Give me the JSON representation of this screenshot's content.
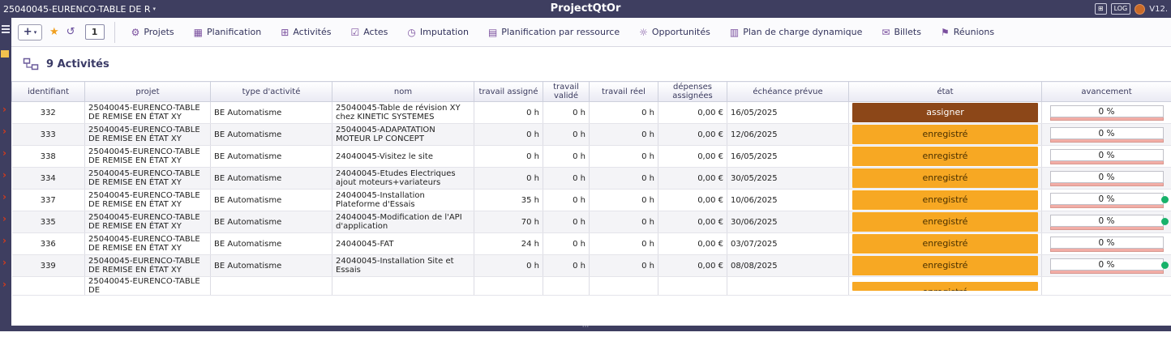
{
  "topbar": {
    "project_selector": "25040045-EURENCO-TABLE DE R",
    "caret": "▾",
    "title": "ProjectQtOr",
    "apps_glyph": "⊞",
    "log_badge": "LOG",
    "version": "V12."
  },
  "toolbar": {
    "new_label": "+",
    "new_caret": "▾",
    "favorite_glyph": "★",
    "history_glyph": "↺",
    "counter": "1",
    "menu": [
      {
        "label": "Projets",
        "icon": "gear-icon",
        "glyph": "⚙"
      },
      {
        "label": "Planification",
        "icon": "calendar-icon",
        "glyph": "▦"
      },
      {
        "label": "Activités",
        "icon": "activities-icon",
        "glyph": "⊞"
      },
      {
        "label": "Actes",
        "icon": "checklist-icon",
        "glyph": "☑"
      },
      {
        "label": "Imputation",
        "icon": "clock-icon",
        "glyph": "◷"
      },
      {
        "label": "Planification par ressource",
        "icon": "resource-plan-icon",
        "glyph": "▤"
      },
      {
        "label": "Opportunités",
        "icon": "opportunity-icon",
        "glyph": "☼"
      },
      {
        "label": "Plan de charge dynamique",
        "icon": "workload-icon",
        "glyph": "▥"
      },
      {
        "label": "Billets",
        "icon": "ticket-icon",
        "glyph": "✉"
      },
      {
        "label": "Réunions",
        "icon": "meeting-icon",
        "glyph": "⚑"
      }
    ]
  },
  "sidebar": {
    "arrow_glyph": "›"
  },
  "content": {
    "title": "9 Activités"
  },
  "table": {
    "status_colors": {
      "assigned": {
        "bg": "#8c4718",
        "fg": "#ffffff"
      },
      "recorded": {
        "bg": "#f7a823",
        "fg": "#4a3000"
      }
    },
    "columns": [
      {
        "key": "id",
        "label": "identifiant"
      },
      {
        "key": "projet",
        "label": "projet"
      },
      {
        "key": "type",
        "label": "type d'activité"
      },
      {
        "key": "nom",
        "label": "nom"
      },
      {
        "key": "ta",
        "label": "travail assigné"
      },
      {
        "key": "tv",
        "label": "travail validé"
      },
      {
        "key": "tr",
        "label": "travail réel"
      },
      {
        "key": "dep",
        "label": "dépenses assignées"
      },
      {
        "key": "ech",
        "label": "échéance prévue"
      },
      {
        "key": "etat",
        "label": "état"
      },
      {
        "key": "av",
        "label": "avancement"
      }
    ],
    "rows": [
      {
        "id": "332",
        "projet": "25040045-EURENCO-TABLE DE REMISE EN ÉTAT XY",
        "type": "BE Automatisme",
        "nom": "25040045-Table de révision XY chez KINETIC SYSTEMES",
        "ta": "0 h",
        "tv": "0 h",
        "tr": "0 h",
        "dep": "0,00 €",
        "ech": "16/05/2025",
        "etat": "assigner",
        "etat_style": "assigned",
        "av": "0 %",
        "dot": false,
        "partial": false
      },
      {
        "id": "333",
        "projet": "25040045-EURENCO-TABLE DE REMISE EN ÉTAT XY",
        "type": "BE Automatisme",
        "nom": "25040045-ADAPATATION MOTEUR LP CONCEPT",
        "ta": "0 h",
        "tv": "0 h",
        "tr": "0 h",
        "dep": "0,00 €",
        "ech": "12/06/2025",
        "etat": "enregistré",
        "etat_style": "recorded",
        "av": "0 %",
        "dot": false,
        "partial": false
      },
      {
        "id": "338",
        "projet": "25040045-EURENCO-TABLE DE REMISE EN ÉTAT XY",
        "type": "BE Automatisme",
        "nom": "24040045-Visitez le site",
        "ta": "0 h",
        "tv": "0 h",
        "tr": "0 h",
        "dep": "0,00 €",
        "ech": "16/05/2025",
        "etat": "enregistré",
        "etat_style": "recorded",
        "av": "0 %",
        "dot": false,
        "partial": false
      },
      {
        "id": "334",
        "projet": "25040045-EURENCO-TABLE DE REMISE EN ÉTAT XY",
        "type": "BE Automatisme",
        "nom": "24040045-Etudes Electriques ajout moteurs+variateurs",
        "ta": "0 h",
        "tv": "0 h",
        "tr": "0 h",
        "dep": "0,00 €",
        "ech": "30/05/2025",
        "etat": "enregistré",
        "etat_style": "recorded",
        "av": "0 %",
        "dot": false,
        "partial": false
      },
      {
        "id": "337",
        "projet": "25040045-EURENCO-TABLE DE REMISE EN ÉTAT XY",
        "type": "BE Automatisme",
        "nom": "24040045-Installation Plateforme d'Essais",
        "ta": "35 h",
        "tv": "0 h",
        "tr": "0 h",
        "dep": "0,00 €",
        "ech": "10/06/2025",
        "etat": "enregistré",
        "etat_style": "recorded",
        "av": "0 %",
        "dot": true,
        "partial": false
      },
      {
        "id": "335",
        "projet": "25040045-EURENCO-TABLE DE REMISE EN ÉTAT XY",
        "type": "BE Automatisme",
        "nom": "24040045-Modification de l'API d'application",
        "ta": "70 h",
        "tv": "0 h",
        "tr": "0 h",
        "dep": "0,00 €",
        "ech": "30/06/2025",
        "etat": "enregistré",
        "etat_style": "recorded",
        "av": "0 %",
        "dot": true,
        "partial": false
      },
      {
        "id": "336",
        "projet": "25040045-EURENCO-TABLE DE REMISE EN ÉTAT XY",
        "type": "BE Automatisme",
        "nom": "24040045-FAT",
        "ta": "24 h",
        "tv": "0 h",
        "tr": "0 h",
        "dep": "0,00 €",
        "ech": "03/07/2025",
        "etat": "enregistré",
        "etat_style": "recorded",
        "av": "0 %",
        "dot": false,
        "partial": false
      },
      {
        "id": "339",
        "projet": "25040045-EURENCO-TABLE DE REMISE EN ÉTAT XY",
        "type": "BE Automatisme",
        "nom": "24040045-Installation Site et Essais",
        "ta": "0 h",
        "tv": "0 h",
        "tr": "0 h",
        "dep": "0,00 €",
        "ech": "08/08/2025",
        "etat": "enregistré",
        "etat_style": "recorded",
        "av": "0 %",
        "dot": true,
        "partial": false
      },
      {
        "id": "",
        "projet": "25040045-EURENCO-TABLE DE",
        "type": "",
        "nom": "",
        "ta": "",
        "tv": "",
        "tr": "",
        "dep": "",
        "ech": "",
        "etat": "enregistré",
        "etat_style": "recorded",
        "av": "",
        "dot": false,
        "partial": true
      }
    ]
  },
  "footer": {
    "handle": "···"
  }
}
